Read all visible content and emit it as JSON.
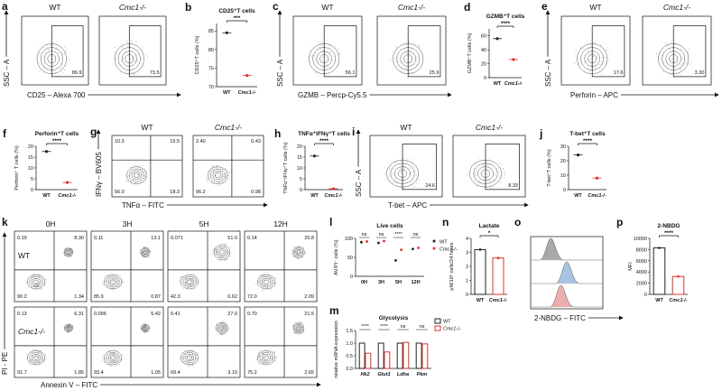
{
  "figure": {
    "flow_panels": [
      {
        "label": "a",
        "x_axis": "CD25 – Alexa 700",
        "y_axis": "SSC – A",
        "plots": [
          {
            "title": "WT",
            "gates": [
              "86.9"
            ]
          },
          {
            "title": "Cmc1-/-",
            "gates": [
              "73.5"
            ]
          }
        ]
      },
      {
        "label": "c",
        "x_axis": "GZMB – Percp-Cy5.5",
        "y_axis": "SSC – A",
        "plots": [
          {
            "title": "WT",
            "gates": [
              "56.1"
            ]
          },
          {
            "title": "Cmc1-/-",
            "gates": [
              "25.9"
            ]
          }
        ]
      },
      {
        "label": "e",
        "x_axis": "Perforin – APC",
        "y_axis": "SSC – A",
        "plots": [
          {
            "title": "WT",
            "gates": [
              "17.6"
            ]
          },
          {
            "title": "Cmc1-/-",
            "gates": [
              "3.30"
            ]
          }
        ]
      },
      {
        "label": "g",
        "x_axis": "TNFα – FITC",
        "y_axis": "IFNγ – BV605",
        "plots": [
          {
            "title": "WT",
            "quadrants": [
              "10.3",
              "15.5",
              "56.0",
              "18.3"
            ]
          },
          {
            "title": "Cmc1-/-",
            "quadrants": [
              "2.40",
              "0.43",
              "96.2",
              "0.98"
            ]
          }
        ]
      },
      {
        "label": "i",
        "x_axis": "T-bet – APC",
        "y_axis": "SSC – A",
        "plots": [
          {
            "title": "WT",
            "gates": [
              "24.6"
            ]
          },
          {
            "title": "Cmc1-/-",
            "gates": [
              "8.33"
            ]
          }
        ]
      },
      {
        "label": "k",
        "x_axis": "Annexin V – FITC",
        "y_axis": "PI - PE",
        "columns": [
          "0H",
          "3H",
          "5H",
          "12H"
        ],
        "rows": [
          {
            "title": "WT",
            "plots": [
              [
                "0.19",
                "8.30",
                "90.2",
                "1.34"
              ],
              [
                "0.11",
                "13.1",
                "85.9",
                "0.87"
              ],
              [
                "0.071",
                "51.0",
                "42.3",
                "6.62"
              ],
              [
                "0.14",
                "25.8",
                "72.0",
                "2.09"
              ]
            ]
          },
          {
            "title": "Cmc1-/-",
            "plots": [
              [
                "0.13",
                "6.31",
                "91.7",
                "1.85"
              ],
              [
                "0.096",
                "5.42",
                "93.4",
                "1.05"
              ],
              [
                "0.41",
                "27.0",
                "69.4",
                "3.19"
              ],
              [
                "0.70",
                "21.5",
                "75.2",
                "2.65"
              ]
            ]
          }
        ]
      },
      {
        "label": "o",
        "x_axis": "2-NBDG – FITC"
      }
    ]
  },
  "chart_data": [
    {
      "type": "dot",
      "label": "b",
      "title": "CD25⁺T cells",
      "y_label": "CD25⁺T cells (%)",
      "categories": [
        "WT",
        "Cmc1-/-"
      ],
      "values": [
        84.5,
        73
      ],
      "colors": [
        "#222222",
        "#e0312b"
      ],
      "ylim": [
        70,
        87
      ],
      "yticks": [
        70,
        75,
        80,
        85
      ],
      "significance": "***"
    },
    {
      "type": "dot",
      "label": "d",
      "title": "GZMB⁺T cells",
      "y_label": "GZMB⁺T cells (%)",
      "categories": [
        "WT",
        "Cmc1-/-"
      ],
      "values": [
        56,
        26
      ],
      "colors": [
        "#222222",
        "#e0312b"
      ],
      "ylim": [
        0,
        70
      ],
      "yticks": [
        0,
        20,
        40,
        60
      ],
      "significance": "****"
    },
    {
      "type": "dot",
      "label": "f",
      "title": "Perforin⁺T cells",
      "y_label": "Perforin⁺ T cells (%)",
      "categories": [
        "WT",
        "Cmc1-/-"
      ],
      "values": [
        17.6,
        3.3
      ],
      "colors": [
        "#222222",
        "#e0312b"
      ],
      "ylim": [
        0,
        20
      ],
      "yticks": [
        0,
        5,
        10,
        15,
        20
      ],
      "significance": "****"
    },
    {
      "type": "dot",
      "label": "h",
      "title": "TNFα⁺IFNγ⁺T cells",
      "y_label": "TNFα⁺IFNγ⁺T cells (%)",
      "categories": [
        "WT",
        "Cmc1-/-"
      ],
      "values": [
        15.5,
        0.4
      ],
      "colors": [
        "#222222",
        "#e0312b"
      ],
      "ylim": [
        0,
        20
      ],
      "yticks": [
        0,
        5,
        10,
        15,
        20
      ],
      "significance": "****"
    },
    {
      "type": "dot",
      "label": "j",
      "title": "T-bet⁺T cells",
      "y_label": "T-bet⁺T cells (%)",
      "categories": [
        "WT",
        "Cmc1-/-"
      ],
      "values": [
        24,
        8
      ],
      "colors": [
        "#222222",
        "#e0312b"
      ],
      "ylim": [
        0,
        30
      ],
      "yticks": [
        0,
        10,
        20,
        30
      ],
      "significance": "****"
    },
    {
      "type": "grouped_dot",
      "label": "l",
      "title": "Live cells",
      "y_label": "AV/PI⁻ cells (%)",
      "categories": [
        "0H",
        "3H",
        "5H",
        "12H"
      ],
      "series": [
        {
          "name": "WT",
          "color": "#222222",
          "values": [
            90,
            88,
            42,
            72
          ]
        },
        {
          "name": "Cmc1-/-",
          "color": "#e0312b",
          "values": [
            92,
            93,
            70,
            75
          ]
        }
      ],
      "ylim": [
        0,
        100
      ],
      "yticks": [
        0,
        50,
        100
      ],
      "significance": [
        "ns",
        "ns",
        "****",
        "ns"
      ]
    },
    {
      "type": "grouped_bar",
      "label": "m",
      "title": "Glycolysis",
      "y_label": "relative mRNA expression",
      "categories": [
        "Hk2",
        "Glut1",
        "Ldha",
        "Pkm"
      ],
      "series": [
        {
          "name": "WT",
          "color": "#222222",
          "values": [
            1,
            1,
            1,
            1
          ]
        },
        {
          "name": "Cmc1-/-",
          "color": "#e0312b",
          "values": [
            0.6,
            0.65,
            1.03,
            0.97
          ]
        }
      ],
      "ylim": [
        0,
        1.5
      ],
      "yticks": [
        {
          "value": 0,
          "label": "0.0"
        },
        {
          "value": 0.5,
          "label": "0.5"
        },
        {
          "value": 1,
          "label": "1.0"
        },
        {
          "value": 1.5,
          "label": "1.5"
        }
      ],
      "significance": [
        "****",
        "****",
        "ns",
        "ns"
      ]
    },
    {
      "type": "bar",
      "label": "n",
      "title": "Lactate",
      "y_label": "μM/10⁶ cells/24 hours",
      "categories": [
        "WT",
        "Cmc1-/-"
      ],
      "values": [
        3.2,
        2.6
      ],
      "colors": [
        "#222222",
        "#e0312b"
      ],
      "ylim": [
        0,
        4
      ],
      "yticks": [
        0,
        1,
        2,
        3,
        4
      ],
      "significance": "*"
    },
    {
      "type": "bar",
      "label": "p",
      "title": "2-NBDG",
      "y_label": "MFI",
      "categories": [
        "WT",
        "Cmc1-/-"
      ],
      "values": [
        8300,
        3200
      ],
      "colors": [
        "#222222",
        "#e0312b"
      ],
      "ylim": [
        0,
        10000
      ],
      "yticks": [
        0,
        2000,
        4000,
        6000,
        8000,
        10000
      ],
      "significance": "****"
    }
  ]
}
